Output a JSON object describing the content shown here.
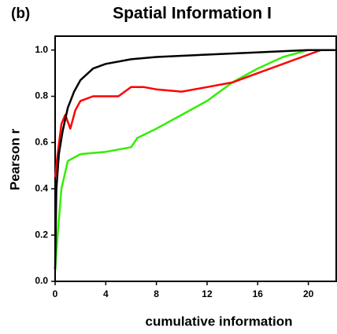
{
  "chart_data": {
    "type": "line",
    "panel_label": "(b)",
    "title": "Spatial Information I",
    "xlabel": "cumulative information",
    "ylabel": "Pearson r",
    "xlim": [
      0,
      22.2
    ],
    "ylim": [
      0,
      1.06
    ],
    "xticks": [
      0,
      4,
      8,
      12,
      16,
      20
    ],
    "yticks": [
      {
        "value": 0,
        "label": "0.0"
      },
      0.2,
      0.4,
      0.6,
      0.8,
      {
        "value": 1,
        "label": "1.0"
      }
    ],
    "series": [
      {
        "name": "black",
        "color": "#000000",
        "x": [
          0,
          0.1,
          0.3,
          0.6,
          1,
          1.5,
          2,
          3,
          4,
          6,
          8,
          12,
          16,
          20,
          22.2
        ],
        "values": [
          0.05,
          0.4,
          0.55,
          0.65,
          0.75,
          0.82,
          0.87,
          0.92,
          0.94,
          0.96,
          0.97,
          0.98,
          0.99,
          1.0,
          1.0
        ]
      },
      {
        "name": "red",
        "color": "#ff0000",
        "x": [
          0,
          0.2,
          0.5,
          0.8,
          1.2,
          1.6,
          2,
          3,
          4,
          5,
          6,
          7,
          8,
          10,
          12,
          14,
          16,
          18,
          20,
          21
        ],
        "values": [
          0.45,
          0.55,
          0.68,
          0.72,
          0.66,
          0.74,
          0.78,
          0.8,
          0.8,
          0.8,
          0.84,
          0.84,
          0.83,
          0.82,
          0.84,
          0.86,
          0.9,
          0.94,
          0.98,
          1.0
        ]
      },
      {
        "name": "green",
        "color": "#33ee00",
        "x": [
          0,
          0.2,
          0.5,
          1,
          2,
          4,
          6,
          6.5,
          8,
          10,
          12,
          14,
          16,
          18,
          20,
          21
        ],
        "values": [
          0.05,
          0.2,
          0.4,
          0.52,
          0.55,
          0.56,
          0.58,
          0.62,
          0.66,
          0.72,
          0.78,
          0.86,
          0.92,
          0.97,
          1.0,
          1.0
        ]
      }
    ]
  }
}
